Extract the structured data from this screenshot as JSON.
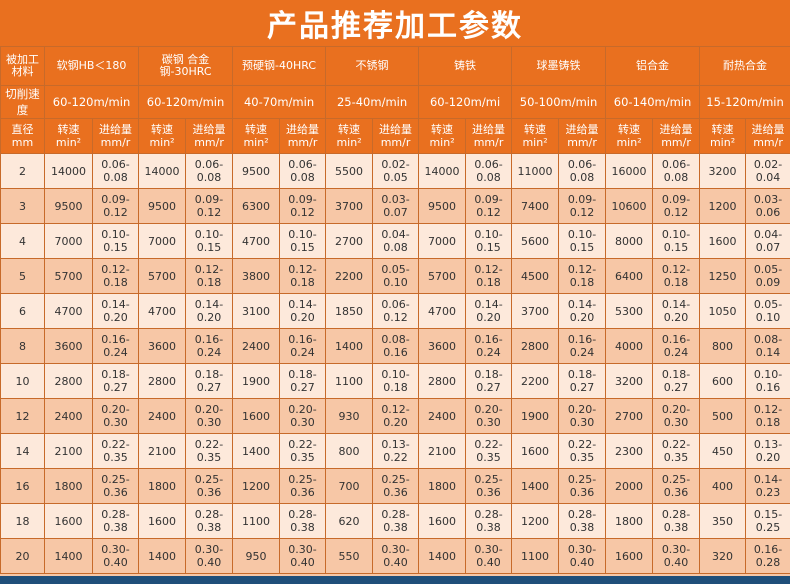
{
  "title": "产品推荐加工参数",
  "colors": {
    "header": "#e9701f",
    "row_light": "#fde9db",
    "row_dark": "#f7c7a6",
    "border": "#c76a2a"
  },
  "labels": {
    "material": "被加工材料",
    "cutting_speed": "切削速度",
    "diameter": "直径mm",
    "rpm": "转速min²",
    "feed": "进给量mm/r"
  },
  "materials": [
    {
      "name": "软钢HB＜180",
      "speed": "60-120m/min"
    },
    {
      "name": "碳钢 合金钢-30HRC",
      "speed": "60-120m/min"
    },
    {
      "name": "预硬钢-40HRC",
      "speed": "40-70m/min"
    },
    {
      "name": "不锈钢",
      "speed": "25-40m/min"
    },
    {
      "name": "铸铁",
      "speed": "60-120m/mi"
    },
    {
      "name": "球墨铸铁",
      "speed": "50-100m/min"
    },
    {
      "name": "铝合金",
      "speed": "60-140m/min"
    },
    {
      "name": "耐热合金",
      "speed": "15-120m/min"
    }
  ],
  "rows": [
    {
      "d": "2",
      "v": [
        "14000",
        "0.06-0.08",
        "14000",
        "0.06-0.08",
        "9500",
        "0.06-0.08",
        "5500",
        "0.02-0.05",
        "14000",
        "0.06-0.08",
        "11000",
        "0.06-0.08",
        "16000",
        "0.06-0.08",
        "3200",
        "0.02-0.04"
      ]
    },
    {
      "d": "3",
      "v": [
        "9500",
        "0.09-0.12",
        "9500",
        "0.09-0.12",
        "6300",
        "0.09-0.12",
        "3700",
        "0.03-0.07",
        "9500",
        "0.09-0.12",
        "7400",
        "0.09-0.12",
        "10600",
        "0.09-0.12",
        "1200",
        "0.03-0.06"
      ]
    },
    {
      "d": "4",
      "v": [
        "7000",
        "0.10-0.15",
        "7000",
        "0.10-0.15",
        "4700",
        "0.10-0.15",
        "2700",
        "0.04-0.08",
        "7000",
        "0.10-0.15",
        "5600",
        "0.10-0.15",
        "8000",
        "0.10-0.15",
        "1600",
        "0.04-0.07"
      ]
    },
    {
      "d": "5",
      "v": [
        "5700",
        "0.12-0.18",
        "5700",
        "0.12-0.18",
        "3800",
        "0.12-0.18",
        "2200",
        "0.05-0.10",
        "5700",
        "0.12-0.18",
        "4500",
        "0.12-0.18",
        "6400",
        "0.12-0.18",
        "1250",
        "0.05-0.09"
      ]
    },
    {
      "d": "6",
      "v": [
        "4700",
        "0.14-0.20",
        "4700",
        "0.14-0.20",
        "3100",
        "0.14-0.20",
        "1850",
        "0.06-0.12",
        "4700",
        "0.14-0.20",
        "3700",
        "0.14-0.20",
        "5300",
        "0.14-0.20",
        "1050",
        "0.05-0.10"
      ]
    },
    {
      "d": "8",
      "v": [
        "3600",
        "0.16-0.24",
        "3600",
        "0.16-0.24",
        "2400",
        "0.16-0.24",
        "1400",
        "0.08-0.16",
        "3600",
        "0.16-0.24",
        "2800",
        "0.16-0.24",
        "4000",
        "0.16-0.24",
        "800",
        "0.08-0.14"
      ]
    },
    {
      "d": "10",
      "v": [
        "2800",
        "0.18-0.27",
        "2800",
        "0.18-0.27",
        "1900",
        "0.18-0.27",
        "1100",
        "0.10-0.18",
        "2800",
        "0.18-0.27",
        "2200",
        "0.18-0.27",
        "3200",
        "0.18-0.27",
        "600",
        "0.10-0.16"
      ]
    },
    {
      "d": "12",
      "v": [
        "2400",
        "0.20-0.30",
        "2400",
        "0.20-0.30",
        "1600",
        "0.20-0.30",
        "930",
        "0.12-0.20",
        "2400",
        "0.20-0.30",
        "1900",
        "0.20-0.30",
        "2700",
        "0.20-0.30",
        "500",
        "0.12-0.18"
      ]
    },
    {
      "d": "14",
      "v": [
        "2100",
        "0.22-0.35",
        "2100",
        "0.22-0.35",
        "1400",
        "0.22-0.35",
        "800",
        "0.13-0.22",
        "2100",
        "0.22-0.35",
        "1600",
        "0.22-0.35",
        "2300",
        "0.22-0.35",
        "450",
        "0.13-0.20"
      ]
    },
    {
      "d": "16",
      "v": [
        "1800",
        "0.25-0.36",
        "1800",
        "0.25-0.36",
        "1200",
        "0.25-0.36",
        "700",
        "0.25-0.36",
        "1800",
        "0.25-0.36",
        "1400",
        "0.25-0.36",
        "2000",
        "0.25-0.36",
        "400",
        "0.14-0.23"
      ]
    },
    {
      "d": "18",
      "v": [
        "1600",
        "0.28-0.38",
        "1600",
        "0.28-0.38",
        "1100",
        "0.28-0.38",
        "620",
        "0.28-0.38",
        "1600",
        "0.28-0.38",
        "1200",
        "0.28-0.38",
        "1800",
        "0.28-0.38",
        "350",
        "0.15-0.25"
      ]
    },
    {
      "d": "20",
      "v": [
        "1400",
        "0.30-0.40",
        "1400",
        "0.30-0.40",
        "950",
        "0.30-0.40",
        "550",
        "0.30-0.40",
        "1400",
        "0.30-0.40",
        "1100",
        "0.30-0.40",
        "1600",
        "0.30-0.40",
        "320",
        "0.16-0.28"
      ]
    }
  ]
}
